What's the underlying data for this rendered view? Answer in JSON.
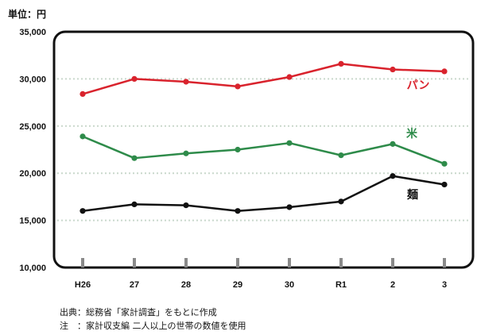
{
  "unit_label": "単位：円",
  "notes": {
    "source": "出典：総務省「家計調査」をもとに作成",
    "note": "注　：家計収支編 二人以上の世帯の数値を使用"
  },
  "chart_data": {
    "type": "line",
    "categories": [
      "H26",
      "27",
      "28",
      "29",
      "30",
      "R1",
      "2",
      "3"
    ],
    "ylim": [
      10000,
      35000
    ],
    "yticks": [
      10000,
      15000,
      20000,
      25000,
      30000,
      35000
    ],
    "ytick_labels": [
      "10,000",
      "15,000",
      "20,000",
      "25,000",
      "30,000",
      "35,000"
    ],
    "grid": true,
    "series": [
      {
        "name": "パン",
        "color": "#d9232d",
        "values": [
          28400,
          30000,
          29700,
          29200,
          30200,
          31600,
          31000,
          30800
        ]
      },
      {
        "name": "米",
        "color": "#2e8b4a",
        "values": [
          23900,
          21600,
          22100,
          22500,
          23200,
          21900,
          23100,
          21000
        ]
      },
      {
        "name": "麺",
        "color": "#111111",
        "values": [
          16000,
          16700,
          16600,
          16000,
          16400,
          17000,
          19700,
          18800
        ]
      }
    ]
  }
}
